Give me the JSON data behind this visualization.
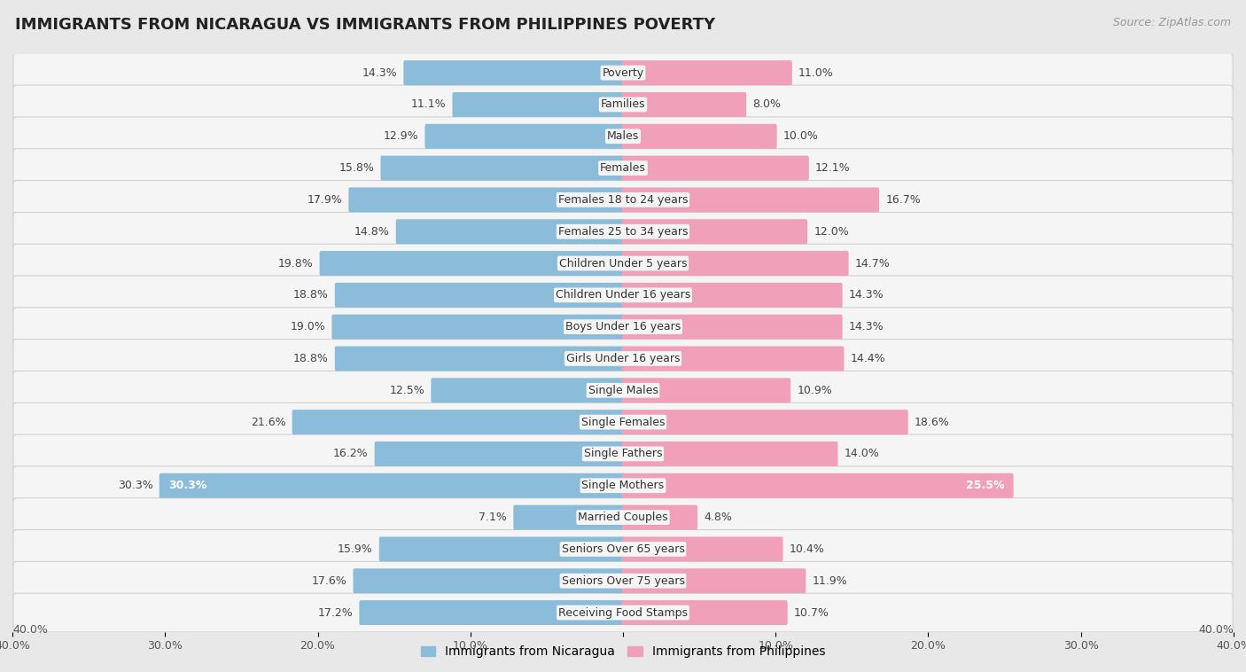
{
  "title": "IMMIGRANTS FROM NICARAGUA VS IMMIGRANTS FROM PHILIPPINES POVERTY",
  "source": "Source: ZipAtlas.com",
  "categories": [
    "Poverty",
    "Families",
    "Males",
    "Females",
    "Females 18 to 24 years",
    "Females 25 to 34 years",
    "Children Under 5 years",
    "Children Under 16 years",
    "Boys Under 16 years",
    "Girls Under 16 years",
    "Single Males",
    "Single Females",
    "Single Fathers",
    "Single Mothers",
    "Married Couples",
    "Seniors Over 65 years",
    "Seniors Over 75 years",
    "Receiving Food Stamps"
  ],
  "nicaragua_values": [
    14.3,
    11.1,
    12.9,
    15.8,
    17.9,
    14.8,
    19.8,
    18.8,
    19.0,
    18.8,
    12.5,
    21.6,
    16.2,
    30.3,
    7.1,
    15.9,
    17.6,
    17.2
  ],
  "philippines_values": [
    11.0,
    8.0,
    10.0,
    12.1,
    16.7,
    12.0,
    14.7,
    14.3,
    14.3,
    14.4,
    10.9,
    18.6,
    14.0,
    25.5,
    4.8,
    10.4,
    11.9,
    10.7
  ],
  "nicaragua_color": "#8BBCDA",
  "philippines_color": "#F0A0B8",
  "background_color": "#e8e8e8",
  "row_color": "#f5f5f5",
  "row_border_color": "#d0d0d0",
  "xlim": 40.0,
  "legend_nicaragua": "Immigrants from Nicaragua",
  "legend_philippines": "Immigrants from Philippines",
  "title_fontsize": 13,
  "source_fontsize": 9,
  "label_fontsize": 9,
  "value_fontsize": 9
}
